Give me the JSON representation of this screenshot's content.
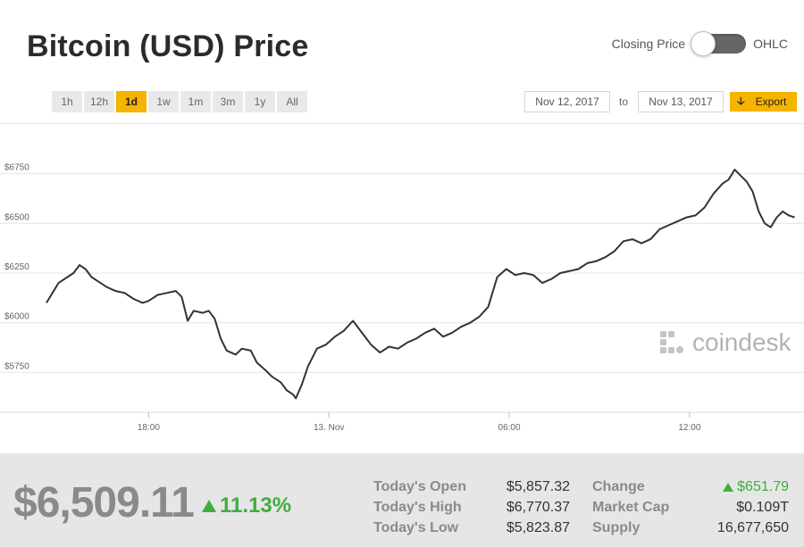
{
  "header": {
    "title": "Bitcoin (USD) Price",
    "toggle_left_label": "Closing Price",
    "toggle_right_label": "OHLC"
  },
  "range_buttons": [
    {
      "label": "1h",
      "active": false
    },
    {
      "label": "12h",
      "active": false
    },
    {
      "label": "1d",
      "active": true
    },
    {
      "label": "1w",
      "active": false
    },
    {
      "label": "1m",
      "active": false
    },
    {
      "label": "3m",
      "active": false
    },
    {
      "label": "1y",
      "active": false
    },
    {
      "label": "All",
      "active": false
    }
  ],
  "date_range": {
    "from": "Nov 12, 2017",
    "to_label": "to",
    "to": "Nov 13, 2017",
    "export_label": "Export"
  },
  "watermark": "coindesk",
  "colors": {
    "accent": "#f5b400",
    "line": "#333333",
    "positive": "#3fae3f",
    "footer_bg": "#e6e6e6"
  },
  "chart_data": {
    "type": "line",
    "title": "",
    "xlabel": "",
    "ylabel": "",
    "ylim": [
      5550,
      6950
    ],
    "grid": true,
    "y_ticks": [
      {
        "value": 5750,
        "label": "$5750"
      },
      {
        "value": 6000,
        "label": "$6000"
      },
      {
        "value": 6250,
        "label": "$6250"
      },
      {
        "value": 6500,
        "label": "$6500"
      },
      {
        "value": 6750,
        "label": "$6750"
      }
    ],
    "x_ticks": [
      {
        "t": 18,
        "label": "18:00"
      },
      {
        "t": 24,
        "label": "13. Nov"
      },
      {
        "t": 30,
        "label": "06:00"
      },
      {
        "t": 36,
        "label": "12:00"
      }
    ],
    "x_range": [
      14.6,
      39.6
    ],
    "series": [
      {
        "name": "",
        "points": [
          [
            14.6,
            6100
          ],
          [
            14.8,
            6150
          ],
          [
            15.0,
            6200
          ],
          [
            15.3,
            6230
          ],
          [
            15.5,
            6250
          ],
          [
            15.7,
            6290
          ],
          [
            15.9,
            6270
          ],
          [
            16.1,
            6230
          ],
          [
            16.3,
            6210
          ],
          [
            16.6,
            6180
          ],
          [
            16.9,
            6160
          ],
          [
            17.2,
            6150
          ],
          [
            17.5,
            6120
          ],
          [
            17.8,
            6100
          ],
          [
            18.0,
            6110
          ],
          [
            18.3,
            6140
          ],
          [
            18.6,
            6150
          ],
          [
            18.9,
            6160
          ],
          [
            19.1,
            6130
          ],
          [
            19.3,
            6010
          ],
          [
            19.5,
            6060
          ],
          [
            19.8,
            6050
          ],
          [
            20.0,
            6060
          ],
          [
            20.2,
            6020
          ],
          [
            20.4,
            5920
          ],
          [
            20.6,
            5860
          ],
          [
            20.9,
            5840
          ],
          [
            21.1,
            5870
          ],
          [
            21.4,
            5860
          ],
          [
            21.6,
            5800
          ],
          [
            21.9,
            5760
          ],
          [
            22.1,
            5730
          ],
          [
            22.4,
            5700
          ],
          [
            22.6,
            5660
          ],
          [
            22.8,
            5640
          ],
          [
            22.9,
            5620
          ],
          [
            23.1,
            5690
          ],
          [
            23.3,
            5780
          ],
          [
            23.6,
            5870
          ],
          [
            23.9,
            5890
          ],
          [
            24.2,
            5930
          ],
          [
            24.5,
            5960
          ],
          [
            24.8,
            6010
          ],
          [
            25.1,
            5950
          ],
          [
            25.4,
            5890
          ],
          [
            25.7,
            5850
          ],
          [
            26.0,
            5880
          ],
          [
            26.3,
            5870
          ],
          [
            26.6,
            5900
          ],
          [
            26.9,
            5920
          ],
          [
            27.2,
            5950
          ],
          [
            27.5,
            5970
          ],
          [
            27.8,
            5930
          ],
          [
            28.1,
            5950
          ],
          [
            28.4,
            5980
          ],
          [
            28.7,
            6000
          ],
          [
            29.0,
            6030
          ],
          [
            29.3,
            6080
          ],
          [
            29.6,
            6230
          ],
          [
            29.9,
            6270
          ],
          [
            30.2,
            6240
          ],
          [
            30.5,
            6250
          ],
          [
            30.8,
            6240
          ],
          [
            31.1,
            6200
          ],
          [
            31.4,
            6220
          ],
          [
            31.7,
            6250
          ],
          [
            32.0,
            6260
          ],
          [
            32.3,
            6270
          ],
          [
            32.6,
            6300
          ],
          [
            32.9,
            6310
          ],
          [
            33.2,
            6330
          ],
          [
            33.5,
            6360
          ],
          [
            33.8,
            6410
          ],
          [
            34.1,
            6420
          ],
          [
            34.4,
            6400
          ],
          [
            34.7,
            6420
          ],
          [
            35.0,
            6470
          ],
          [
            35.3,
            6490
          ],
          [
            35.6,
            6510
          ],
          [
            35.9,
            6530
          ],
          [
            36.2,
            6540
          ],
          [
            36.5,
            6580
          ],
          [
            36.8,
            6650
          ],
          [
            37.1,
            6700
          ],
          [
            37.3,
            6720
          ],
          [
            37.5,
            6770
          ],
          [
            37.7,
            6740
          ],
          [
            37.9,
            6710
          ],
          [
            38.1,
            6660
          ],
          [
            38.3,
            6560
          ],
          [
            38.5,
            6500
          ],
          [
            38.7,
            6480
          ],
          [
            38.9,
            6530
          ],
          [
            39.1,
            6560
          ],
          [
            39.3,
            6540
          ],
          [
            39.5,
            6530
          ]
        ]
      }
    ]
  },
  "footer": {
    "price": "$6,509.11",
    "change_pct": "11.13%",
    "stats_left": [
      {
        "label": "Today's Open",
        "value": "$5,857.32"
      },
      {
        "label": "Today's High",
        "value": "$6,770.37"
      },
      {
        "label": "Today's Low",
        "value": "$5,823.87"
      }
    ],
    "stats_right": [
      {
        "label": "Change",
        "value": "$651.79"
      },
      {
        "label": "Market Cap",
        "value": "$0.109T"
      },
      {
        "label": "Supply",
        "value": "16,677,650"
      }
    ]
  }
}
